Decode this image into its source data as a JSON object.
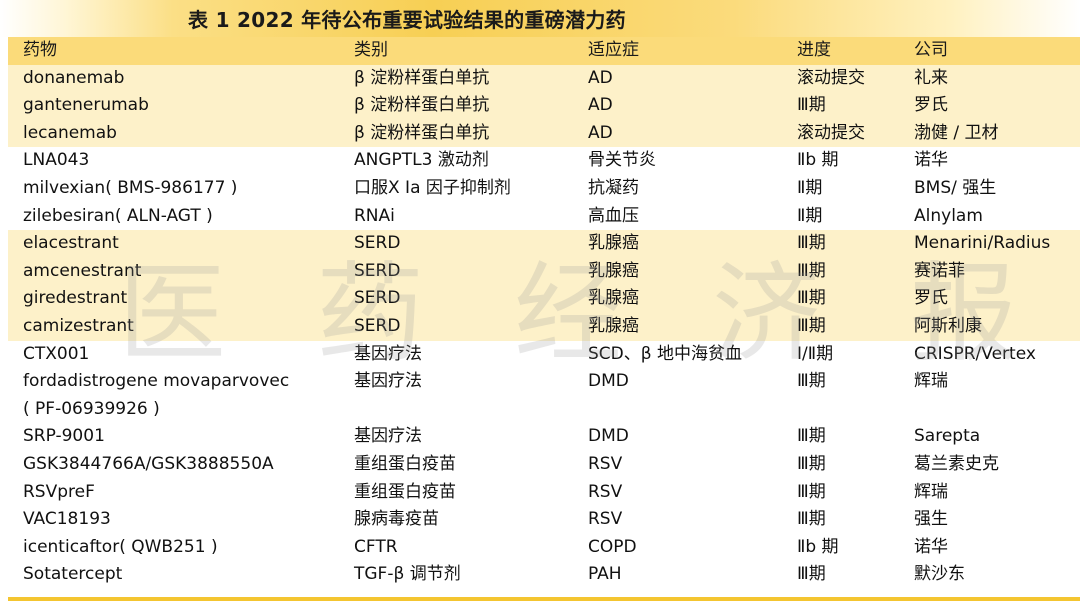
{
  "title": "表 1   2022 年待公布重要试验结果的重磅潜力药",
  "headers": [
    "药物",
    "类别",
    "适应症",
    "进度",
    "公司"
  ],
  "rows": [
    [
      "donanemab",
      "β 淀粉样蛋白单抗",
      "AD",
      "滚动提交",
      "礼来"
    ],
    [
      "gantenerumab",
      "β 淀粉样蛋白单抗",
      "AD",
      "Ⅲ期",
      "罗氏"
    ],
    [
      "lecanemab",
      "β 淀粉样蛋白单抗",
      "AD",
      "滚动提交",
      "渤健 / 卫材"
    ],
    [
      "LNA043",
      "ANGPTL3 激动剂",
      "骨关节炎",
      "Ⅱb 期",
      "诺华"
    ],
    [
      "milvexian( BMS-986177 )",
      "口服Ⅹ Ⅰa 因子抑制剂",
      "抗凝药",
      "Ⅱ期",
      "BMS/ 强生"
    ],
    [
      "zilebesiran( ALN-AGT )",
      "RNAi",
      "高血压",
      "Ⅱ期",
      "Alnylam"
    ],
    [
      "elacestrant",
      "SERD",
      "乳腺癌",
      "Ⅲ期",
      "Menarini/Radius"
    ],
    [
      "amcenestrant",
      "SERD",
      "乳腺癌",
      "Ⅲ期",
      "赛诺菲"
    ],
    [
      "giredestrant",
      "SERD",
      "乳腺癌",
      "Ⅲ期",
      "罗氏"
    ],
    [
      "camizestrant",
      "SERD",
      "乳腺癌",
      "Ⅲ期",
      "阿斯利康"
    ],
    [
      "CTX001",
      "基因疗法",
      "SCD、β 地中海贫血",
      "Ⅰ/Ⅱ期",
      "CRISPR/Vertex"
    ],
    [
      "fordadistrogene   movaparvovec",
      "基因疗法",
      "DMD",
      "Ⅲ期",
      "辉瑞"
    ],
    [
      "SRP-9001",
      "基因疗法",
      "DMD",
      "Ⅲ期",
      "Sarepta"
    ],
    [
      "GSK3844766A/GSK3888550A",
      "重组蛋白疫苗",
      "RSV",
      "Ⅲ期",
      "葛兰素史克"
    ],
    [
      "RSVpreF",
      "重组蛋白疫苗",
      "RSV",
      "Ⅲ期",
      "辉瑞"
    ],
    [
      "VAC18193",
      "腺病毒疫苗",
      "RSV",
      "Ⅲ期",
      "强生"
    ],
    [
      "icenticaftor( QWB251 )",
      "CFTR",
      "COPD",
      "Ⅱb 期",
      "诺华"
    ],
    [
      "Sotatercept",
      "TGF-β 调节剂",
      "PAH",
      "Ⅲ期",
      "默沙东"
    ]
  ],
  "row12_line2": "( PF-06939926 )",
  "watermark": [
    "医",
    "药",
    "经",
    "济",
    "报"
  ]
}
